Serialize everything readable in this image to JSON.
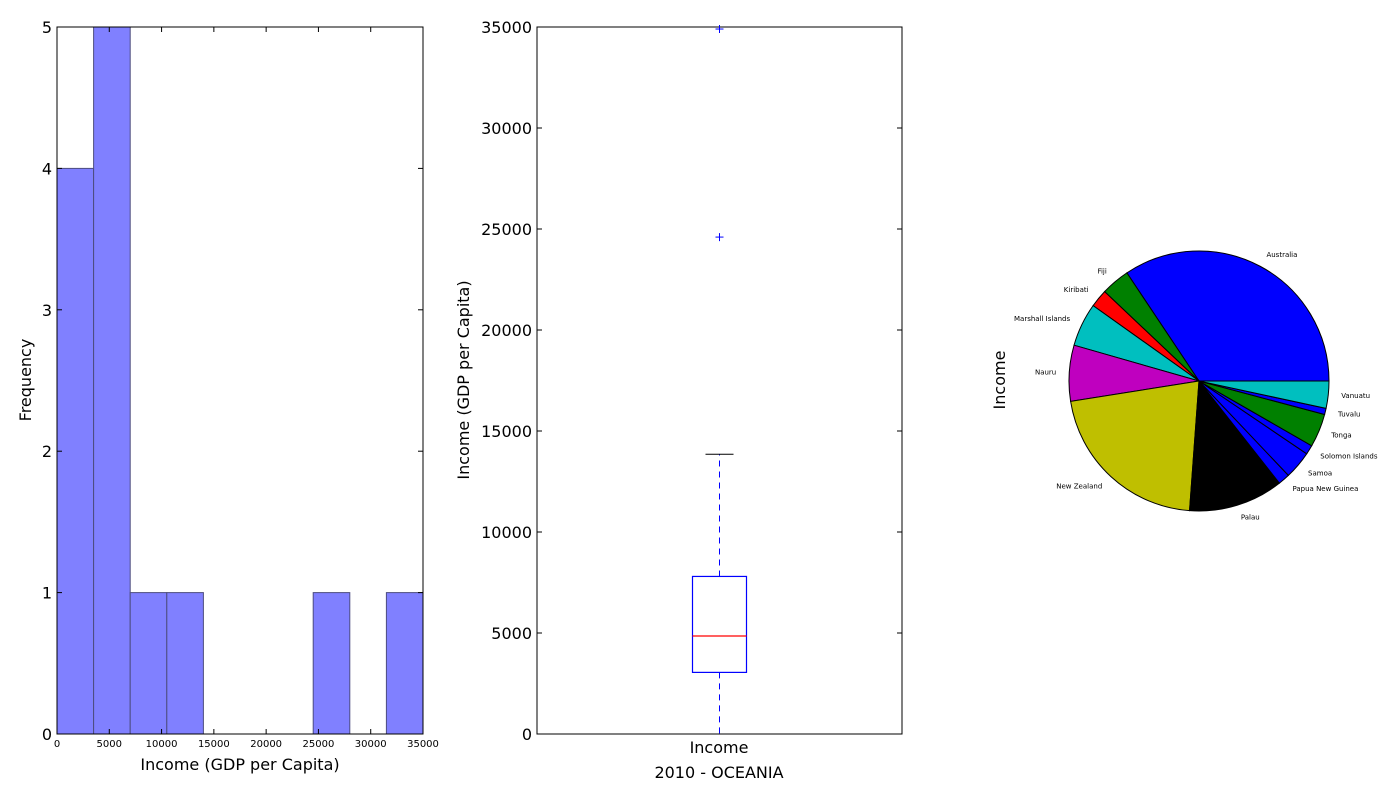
{
  "chart_data": [
    {
      "type": "bar",
      "subtype": "histogram",
      "xlabel": "Income (GDP per Capita)",
      "ylabel": "Frequency",
      "xlim": [
        0,
        35000
      ],
      "ylim": [
        0,
        5
      ],
      "bins": [
        {
          "start": 0,
          "end": 3500,
          "count": 4
        },
        {
          "start": 3500,
          "end": 7000,
          "count": 5
        },
        {
          "start": 7000,
          "end": 10500,
          "count": 1
        },
        {
          "start": 10500,
          "end": 14000,
          "count": 1
        },
        {
          "start": 14000,
          "end": 17500,
          "count": 0
        },
        {
          "start": 17500,
          "end": 21000,
          "count": 0
        },
        {
          "start": 21000,
          "end": 24500,
          "count": 0
        },
        {
          "start": 24500,
          "end": 28000,
          "count": 1
        },
        {
          "start": 28000,
          "end": 31500,
          "count": 0
        },
        {
          "start": 31500,
          "end": 35000,
          "count": 1
        }
      ],
      "xticks": [
        "0",
        "5000",
        "10000",
        "15000",
        "20000",
        "25000",
        "30000",
        "35000"
      ],
      "yticks": [
        "0",
        "1",
        "2",
        "3",
        "4",
        "5"
      ],
      "bar_color": "#8080ff",
      "grid": false
    },
    {
      "type": "box",
      "category": "Income",
      "xlabel": "2010 - OCEANIA",
      "ylabel": "Income (GDP per Capita)",
      "ylim": [
        0,
        35000
      ],
      "whisker_low": 0,
      "q1": 3050,
      "median": 4850,
      "q3": 7800,
      "whisker_high": 13850,
      "outliers": [
        24600,
        34900
      ],
      "yticks": [
        "0",
        "5000",
        "10000",
        "15000",
        "20000",
        "25000",
        "30000",
        "35000"
      ],
      "box_color": "#0000ff",
      "median_color": "#ff0000",
      "grid": false
    },
    {
      "type": "pie",
      "ylabel": "Income",
      "slices": [
        {
          "label": "Australia",
          "value": 35.6,
          "color": "#0000ff"
        },
        {
          "label": "Fiji",
          "value": 3.7,
          "color": "#008000"
        },
        {
          "label": "Kiribati",
          "value": 2.3,
          "color": "#ff0000"
        },
        {
          "label": "Marshall Islands",
          "value": 5.6,
          "color": "#00bfbf"
        },
        {
          "label": "Nauru",
          "value": 7.2,
          "color": "#bf00bf"
        },
        {
          "label": "New Zealand",
          "value": 22.1,
          "color": "#bfbf00"
        },
        {
          "label": "Palau",
          "value": 12.2,
          "color": "#000000"
        },
        {
          "label": "Papua New Guinea",
          "value": 1.5,
          "color": "#0000ff"
        },
        {
          "label": "Samoa",
          "value": 3.6,
          "color": "#0000ff"
        },
        {
          "label": "Solomon Islands",
          "value": 1.2,
          "color": "#0000ff"
        },
        {
          "label": "Tonga",
          "value": 4.3,
          "color": "#008000"
        },
        {
          "label": "Tuvalu",
          "value": 0.8,
          "color": "#0000ff"
        },
        {
          "label": "Vanuatu",
          "value": 3.5,
          "color": "#00bfbf"
        }
      ]
    }
  ]
}
